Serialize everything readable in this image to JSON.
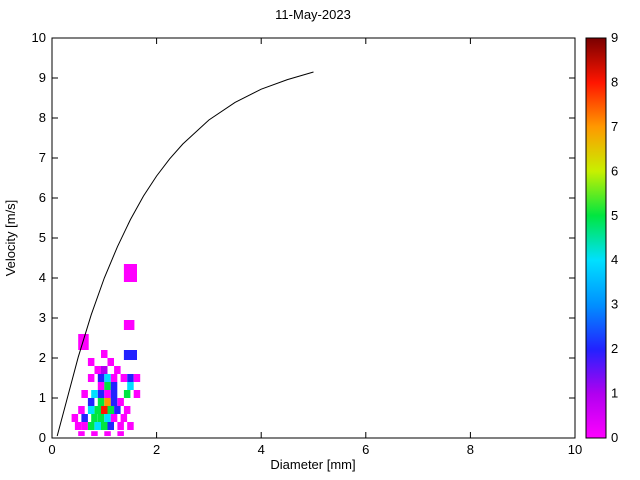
{
  "figure": {
    "title": "11-May-2023"
  },
  "chart_data": {
    "type": "heatmap",
    "title": "11-May-2023",
    "xlabel": "Diameter [mm]",
    "ylabel": "Velocity [m/s]",
    "xlim": [
      0,
      10
    ],
    "ylim": [
      0,
      10
    ],
    "x_ticks": [
      0,
      2,
      4,
      6,
      8,
      10
    ],
    "y_ticks": [
      0,
      1,
      2,
      3,
      4,
      5,
      6,
      7,
      8,
      9,
      10
    ],
    "grid": false,
    "colorbar": {
      "position": "right",
      "range": [
        0,
        9
      ],
      "ticks": [
        0,
        1,
        2,
        3,
        4,
        5,
        6,
        7,
        8,
        9
      ],
      "colors": [
        "#ff00ff",
        "#b000f0",
        "#2222ff",
        "#0090ff",
        "#00e0ff",
        "#00e640",
        "#c8f000",
        "#ff9900",
        "#ff1500",
        "#7a0000"
      ]
    },
    "cells_format": [
      "x_left_mm",
      "y_bottom_ms",
      "width_mm",
      "height_ms",
      "value"
    ],
    "cells": [
      [
        1.375,
        3.9,
        0.25,
        0.45,
        0
      ],
      [
        1.375,
        2.7,
        0.2,
        0.25,
        0
      ],
      [
        0.5,
        2.2,
        0.2,
        0.4,
        0
      ],
      [
        0.937,
        2.0,
        0.125,
        0.2,
        0
      ],
      [
        1.375,
        1.95,
        0.25,
        0.25,
        2
      ],
      [
        0.687,
        1.8,
        0.125,
        0.2,
        0
      ],
      [
        1.062,
        1.8,
        0.125,
        0.2,
        0
      ],
      [
        0.812,
        1.6,
        0.125,
        0.2,
        0
      ],
      [
        0.937,
        1.6,
        0.125,
        0.2,
        1
      ],
      [
        1.187,
        1.6,
        0.125,
        0.2,
        0
      ],
      [
        0.687,
        1.4,
        0.125,
        0.2,
        0
      ],
      [
        0.875,
        1.4,
        0.125,
        0.2,
        2
      ],
      [
        1.0,
        1.4,
        0.125,
        0.2,
        4
      ],
      [
        1.125,
        1.4,
        0.125,
        0.2,
        0
      ],
      [
        1.312,
        1.4,
        0.125,
        0.2,
        0
      ],
      [
        1.437,
        1.4,
        0.125,
        0.2,
        2
      ],
      [
        1.562,
        1.4,
        0.125,
        0.2,
        0
      ],
      [
        0.875,
        1.2,
        0.125,
        0.2,
        0
      ],
      [
        1.0,
        1.2,
        0.125,
        0.2,
        5
      ],
      [
        1.125,
        1.2,
        0.125,
        0.2,
        2
      ],
      [
        1.437,
        1.2,
        0.125,
        0.2,
        4
      ],
      [
        0.562,
        1.0,
        0.125,
        0.2,
        0
      ],
      [
        0.75,
        1.0,
        0.125,
        0.2,
        4
      ],
      [
        0.875,
        1.0,
        0.125,
        0.2,
        2
      ],
      [
        1.0,
        1.0,
        0.125,
        0.2,
        0
      ],
      [
        1.125,
        1.0,
        0.125,
        0.2,
        2
      ],
      [
        1.375,
        1.0,
        0.125,
        0.2,
        5
      ],
      [
        1.562,
        1.0,
        0.125,
        0.2,
        0
      ],
      [
        0.687,
        0.8,
        0.125,
        0.2,
        2
      ],
      [
        0.875,
        0.8,
        0.125,
        0.2,
        5
      ],
      [
        1.0,
        0.8,
        0.125,
        0.2,
        7
      ],
      [
        1.125,
        0.8,
        0.125,
        0.2,
        2
      ],
      [
        1.25,
        0.8,
        0.125,
        0.2,
        0
      ],
      [
        0.5,
        0.6,
        0.125,
        0.2,
        0
      ],
      [
        0.687,
        0.6,
        0.125,
        0.2,
        4
      ],
      [
        0.812,
        0.6,
        0.125,
        0.2,
        5
      ],
      [
        0.937,
        0.6,
        0.125,
        0.2,
        8
      ],
      [
        1.062,
        0.6,
        0.125,
        0.2,
        5
      ],
      [
        1.187,
        0.6,
        0.125,
        0.2,
        2
      ],
      [
        1.375,
        0.6,
        0.125,
        0.2,
        0
      ],
      [
        0.375,
        0.4,
        0.125,
        0.2,
        0
      ],
      [
        0.562,
        0.4,
        0.125,
        0.2,
        2
      ],
      [
        0.75,
        0.4,
        0.125,
        0.2,
        5
      ],
      [
        0.875,
        0.4,
        0.125,
        0.2,
        5
      ],
      [
        1.0,
        0.4,
        0.125,
        0.2,
        4
      ],
      [
        1.125,
        0.4,
        0.125,
        0.2,
        0
      ],
      [
        1.312,
        0.4,
        0.125,
        0.2,
        0
      ],
      [
        0.437,
        0.2,
        0.125,
        0.2,
        0
      ],
      [
        0.562,
        0.2,
        0.125,
        0.2,
        0
      ],
      [
        0.687,
        0.2,
        0.125,
        0.2,
        5
      ],
      [
        0.812,
        0.2,
        0.125,
        0.2,
        4
      ],
      [
        0.937,
        0.2,
        0.125,
        0.2,
        5
      ],
      [
        1.062,
        0.2,
        0.125,
        0.2,
        2
      ],
      [
        1.25,
        0.2,
        0.125,
        0.2,
        0
      ],
      [
        1.437,
        0.2,
        0.125,
        0.2,
        0
      ],
      [
        0.5,
        0.05,
        0.125,
        0.12,
        0
      ],
      [
        0.75,
        0.05,
        0.125,
        0.12,
        0
      ],
      [
        1.0,
        0.05,
        0.125,
        0.12,
        0
      ],
      [
        1.25,
        0.05,
        0.125,
        0.12,
        0
      ]
    ],
    "curve": {
      "label": "terminal-velocity-curve",
      "x": [
        0.1,
        0.25,
        0.5,
        0.75,
        1.0,
        1.25,
        1.5,
        1.75,
        2.0,
        2.25,
        2.5,
        3.0,
        3.5,
        4.0,
        4.5,
        5.0
      ],
      "y": [
        0.05,
        0.79,
        2.02,
        3.08,
        4.0,
        4.78,
        5.46,
        6.05,
        6.55,
        6.98,
        7.35,
        7.95,
        8.39,
        8.72,
        8.96,
        9.15
      ]
    }
  }
}
